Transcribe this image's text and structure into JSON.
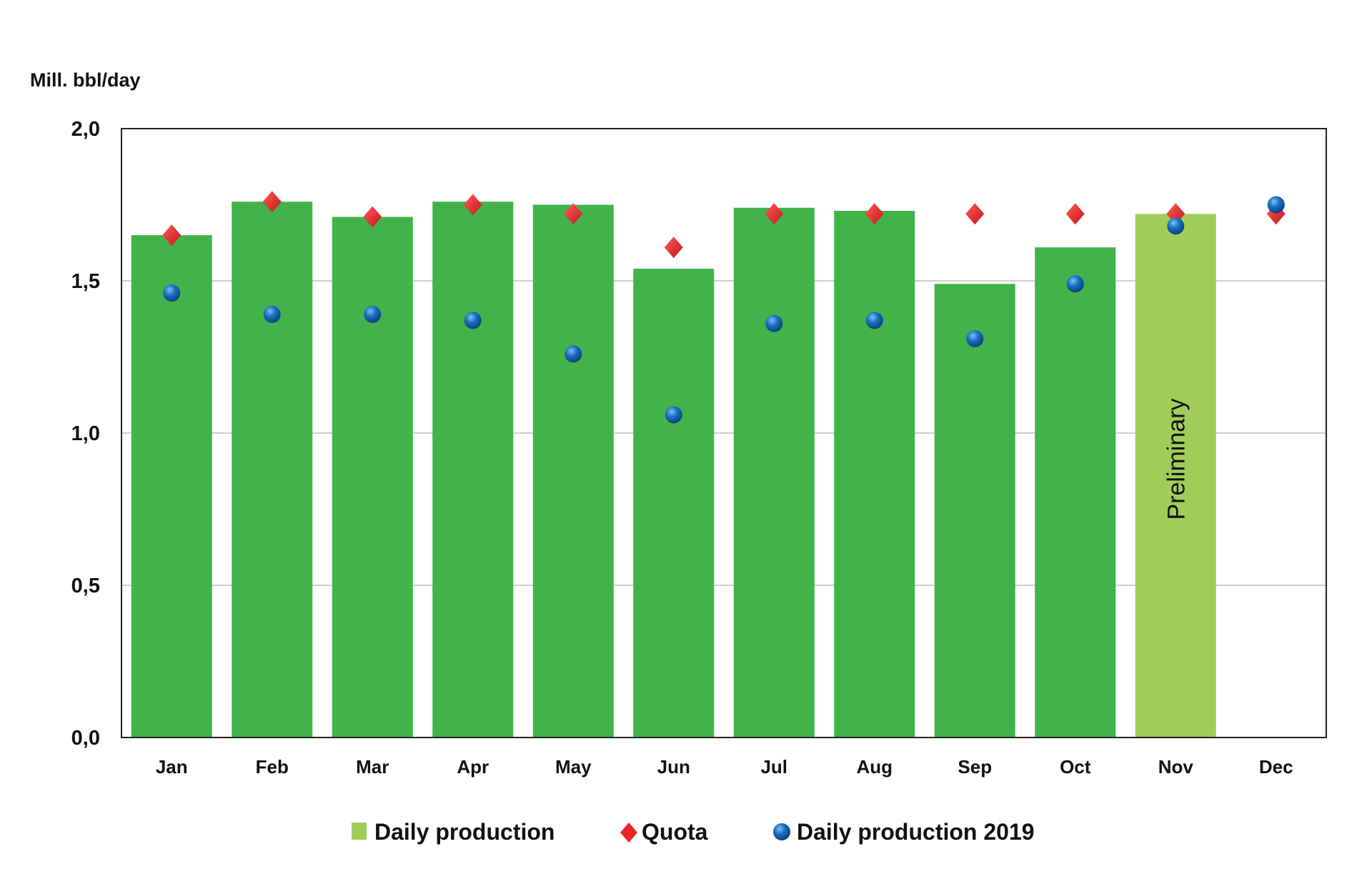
{
  "chart_data": {
    "type": "bar",
    "title": "",
    "ylabel": "Mill. bbl/day",
    "xlabel": "",
    "ylim": [
      0,
      2.0
    ],
    "yticks": [
      "0,0",
      "0,5",
      "1,0",
      "1,5",
      "2,0"
    ],
    "ytick_values": [
      0,
      0.5,
      1.0,
      1.5,
      2.0
    ],
    "grid": true,
    "legend_position": "bottom",
    "categories": [
      "Jan",
      "Feb",
      "Mar",
      "Apr",
      "May",
      "Jun",
      "Jul",
      "Aug",
      "Sep",
      "Oct",
      "Nov",
      "Dec"
    ],
    "series": [
      {
        "name": "Daily production",
        "kind": "bar",
        "color": "#41b34a",
        "preliminary_color": "#a0cd5a",
        "values": [
          1.65,
          1.76,
          1.71,
          1.76,
          1.75,
          1.54,
          1.74,
          1.73,
          1.49,
          1.61,
          1.72,
          null
        ]
      },
      {
        "name": "Quota",
        "kind": "marker-diamond",
        "color": "#e8262a",
        "values": [
          1.65,
          1.76,
          1.71,
          1.75,
          1.72,
          1.61,
          1.72,
          1.72,
          1.72,
          1.72,
          1.72,
          1.72
        ]
      },
      {
        "name": "Daily production 2019",
        "kind": "marker-circle",
        "color": "#1b6fc0",
        "values": [
          1.46,
          1.39,
          1.39,
          1.37,
          1.26,
          1.06,
          1.36,
          1.37,
          1.31,
          1.49,
          1.68,
          1.75
        ]
      }
    ],
    "annotations": [
      {
        "category": "Nov",
        "text": "Preliminary"
      }
    ],
    "legend_swatch_color": "#a0cd5a"
  }
}
